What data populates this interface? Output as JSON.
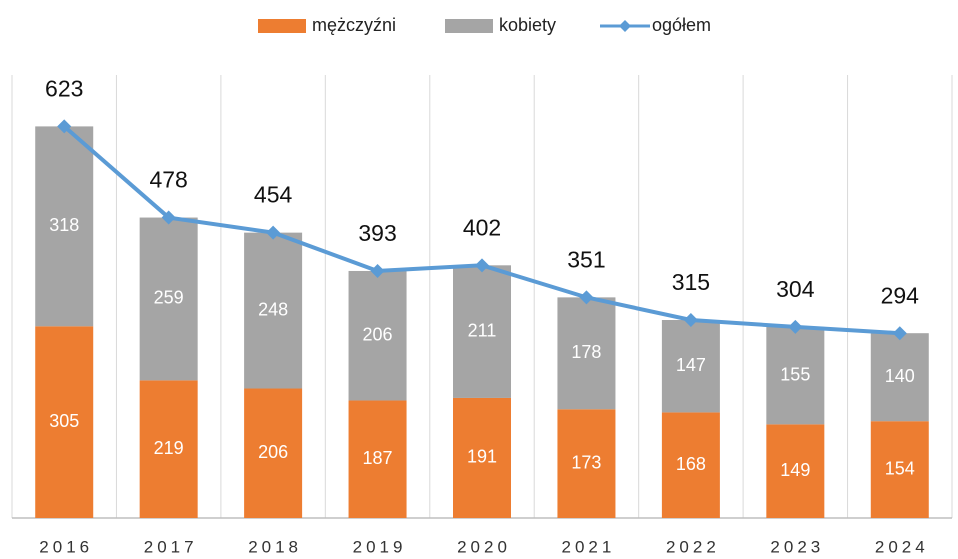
{
  "chart_data": {
    "type": "bar",
    "categories": [
      "2016",
      "2017",
      "2018",
      "2019",
      "2020",
      "2021",
      "2022",
      "2023",
      "2024"
    ],
    "series": [
      {
        "name": "mężczyźni",
        "color": "#ed7d31",
        "values": [
          305,
          219,
          206,
          187,
          191,
          173,
          168,
          149,
          154
        ]
      },
      {
        "name": "kobiety",
        "color": "#a5a5a5",
        "values": [
          318,
          259,
          248,
          206,
          211,
          178,
          147,
          155,
          140
        ]
      },
      {
        "name": "ogółem",
        "type": "line",
        "color": "#5b9bd5",
        "values": [
          623,
          478,
          454,
          393,
          402,
          351,
          315,
          304,
          294
        ]
      }
    ],
    "stacked": true,
    "ylim": [
      0,
      700
    ],
    "grid": true
  }
}
